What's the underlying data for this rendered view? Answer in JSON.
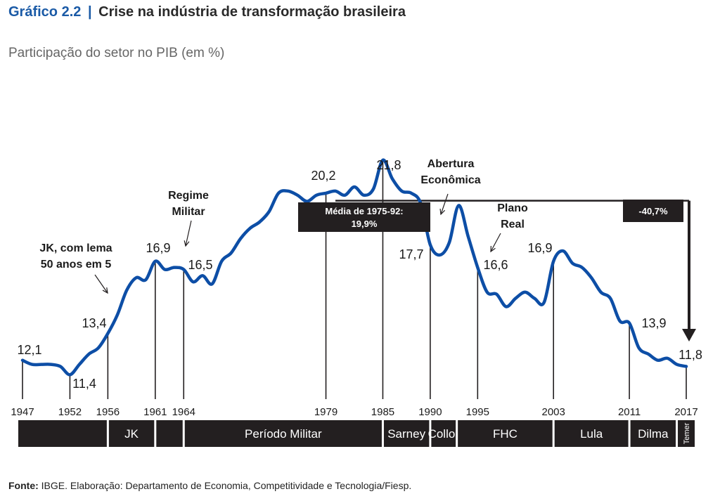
{
  "title_prefix": "Gráfico 2.2",
  "title_separator": "|",
  "title": "Crise na indústria de transformação brasileira",
  "subtitle": "Participação do setor no PIB (em %)",
  "footer": {
    "label": "Fonte:",
    "text": "IBGE. Elaboração: Departamento de Economia, Competitividade e Tecnologia/Fiesp."
  },
  "colors": {
    "line": "#0d4ea6",
    "dark": "#231f20",
    "text": "#1a1a1a",
    "accent": "#1a5aa6"
  },
  "chart_data": {
    "type": "line",
    "xlim": [
      1947,
      2017
    ],
    "ylim": [
      11,
      22
    ],
    "grid": false,
    "series": [
      {
        "x": [
          1947,
          1948,
          1949,
          1950,
          1951,
          1952,
          1953,
          1954,
          1955,
          1956,
          1957,
          1958,
          1959,
          1960,
          1961,
          1962,
          1963,
          1964,
          1965,
          1966,
          1967,
          1968,
          1969,
          1970,
          1971,
          1972,
          1973,
          1974,
          1975,
          1976,
          1977,
          1978,
          1979,
          1980,
          1981,
          1982,
          1983,
          1984,
          1985,
          1986,
          1987,
          1988,
          1989,
          1990,
          1991,
          1992,
          1993,
          1994,
          1995,
          1996,
          1997,
          1998,
          1999,
          2000,
          2001,
          2002,
          2003,
          2004,
          2005,
          2006,
          2007,
          2008,
          2009,
          2010,
          2011,
          2012,
          2013,
          2014,
          2015,
          2016,
          2017
        ],
        "values": [
          12.1,
          11.9,
          11.9,
          11.9,
          11.8,
          11.4,
          11.9,
          12.4,
          12.7,
          13.4,
          14.3,
          15.5,
          16.1,
          16.0,
          16.9,
          16.5,
          16.6,
          16.5,
          15.9,
          16.2,
          15.8,
          16.9,
          17.3,
          18.0,
          18.5,
          18.8,
          19.3,
          20.2,
          20.3,
          20.1,
          19.8,
          20.1,
          20.2,
          20.3,
          20.1,
          20.5,
          20.1,
          20.4,
          21.8,
          20.9,
          20.3,
          20.2,
          19.7,
          17.7,
          17.2,
          17.8,
          19.6,
          18.1,
          16.6,
          15.4,
          15.3,
          14.7,
          15.1,
          15.4,
          15.1,
          14.9,
          16.9,
          17.4,
          16.8,
          16.6,
          16.1,
          15.4,
          15.1,
          14.0,
          13.9,
          12.7,
          12.4,
          12.1,
          12.2,
          11.9,
          11.8
        ]
      }
    ],
    "point_labels": [
      {
        "x": 1947,
        "text": "12,1"
      },
      {
        "x": 1952,
        "text": "11,4"
      },
      {
        "x": 1956,
        "text": "13,4"
      },
      {
        "x": 1961,
        "text": "16,9"
      },
      {
        "x": 1964,
        "text": "16,5"
      },
      {
        "x": 1979,
        "text": "20,2"
      },
      {
        "x": 1985,
        "text": "21,8"
      },
      {
        "x": 1990,
        "text": "17,7"
      },
      {
        "x": 1995,
        "text": "16,6"
      },
      {
        "x": 2003,
        "text": "16,9"
      },
      {
        "x": 2011,
        "text": "13,9"
      },
      {
        "x": 2017,
        "text": "11,8"
      }
    ],
    "marker_years": [
      1947,
      1952,
      1956,
      1961,
      1964,
      1979,
      1985,
      1990,
      1995,
      2003,
      2011,
      2017
    ],
    "x_tick_labels": [
      "1947",
      "1952",
      "1956",
      "1961",
      "1964",
      "1979",
      "1985",
      "1990",
      "1995",
      "2003",
      "2011",
      "2017"
    ],
    "periods": [
      {
        "from": 1947,
        "to": 1956,
        "label": ""
      },
      {
        "from": 1956,
        "to": 1961,
        "label": "JK"
      },
      {
        "from": 1961,
        "to": 1964,
        "label": ""
      },
      {
        "from": 1964,
        "to": 1985,
        "label": "Período Militar"
      },
      {
        "from": 1985,
        "to": 1990,
        "label": "Sarney"
      },
      {
        "from": 1990,
        "to": 1992.8,
        "label": "Collor"
      },
      {
        "from": 1992.8,
        "to": 2003,
        "label": "FHC"
      },
      {
        "from": 2003,
        "to": 2011,
        "label": "Lula"
      },
      {
        "from": 2011,
        "to": 2016,
        "label": "Dilma"
      },
      {
        "from": 2016,
        "to": 2017,
        "label": "Temer"
      }
    ],
    "annotations": [
      {
        "id": "jk",
        "lines": [
          "JK, com lema",
          "50 anos em 5"
        ]
      },
      {
        "id": "regime",
        "lines": [
          "Regime",
          "Militar"
        ]
      },
      {
        "id": "abertura",
        "lines": [
          "Abertura",
          "Econômica"
        ]
      },
      {
        "id": "plano",
        "lines": [
          "Plano",
          "Real"
        ]
      }
    ],
    "average_box": {
      "lines": [
        "Média de 1975-92:",
        "19,9%"
      ]
    },
    "drop_box": {
      "text": "-40,7%"
    }
  }
}
